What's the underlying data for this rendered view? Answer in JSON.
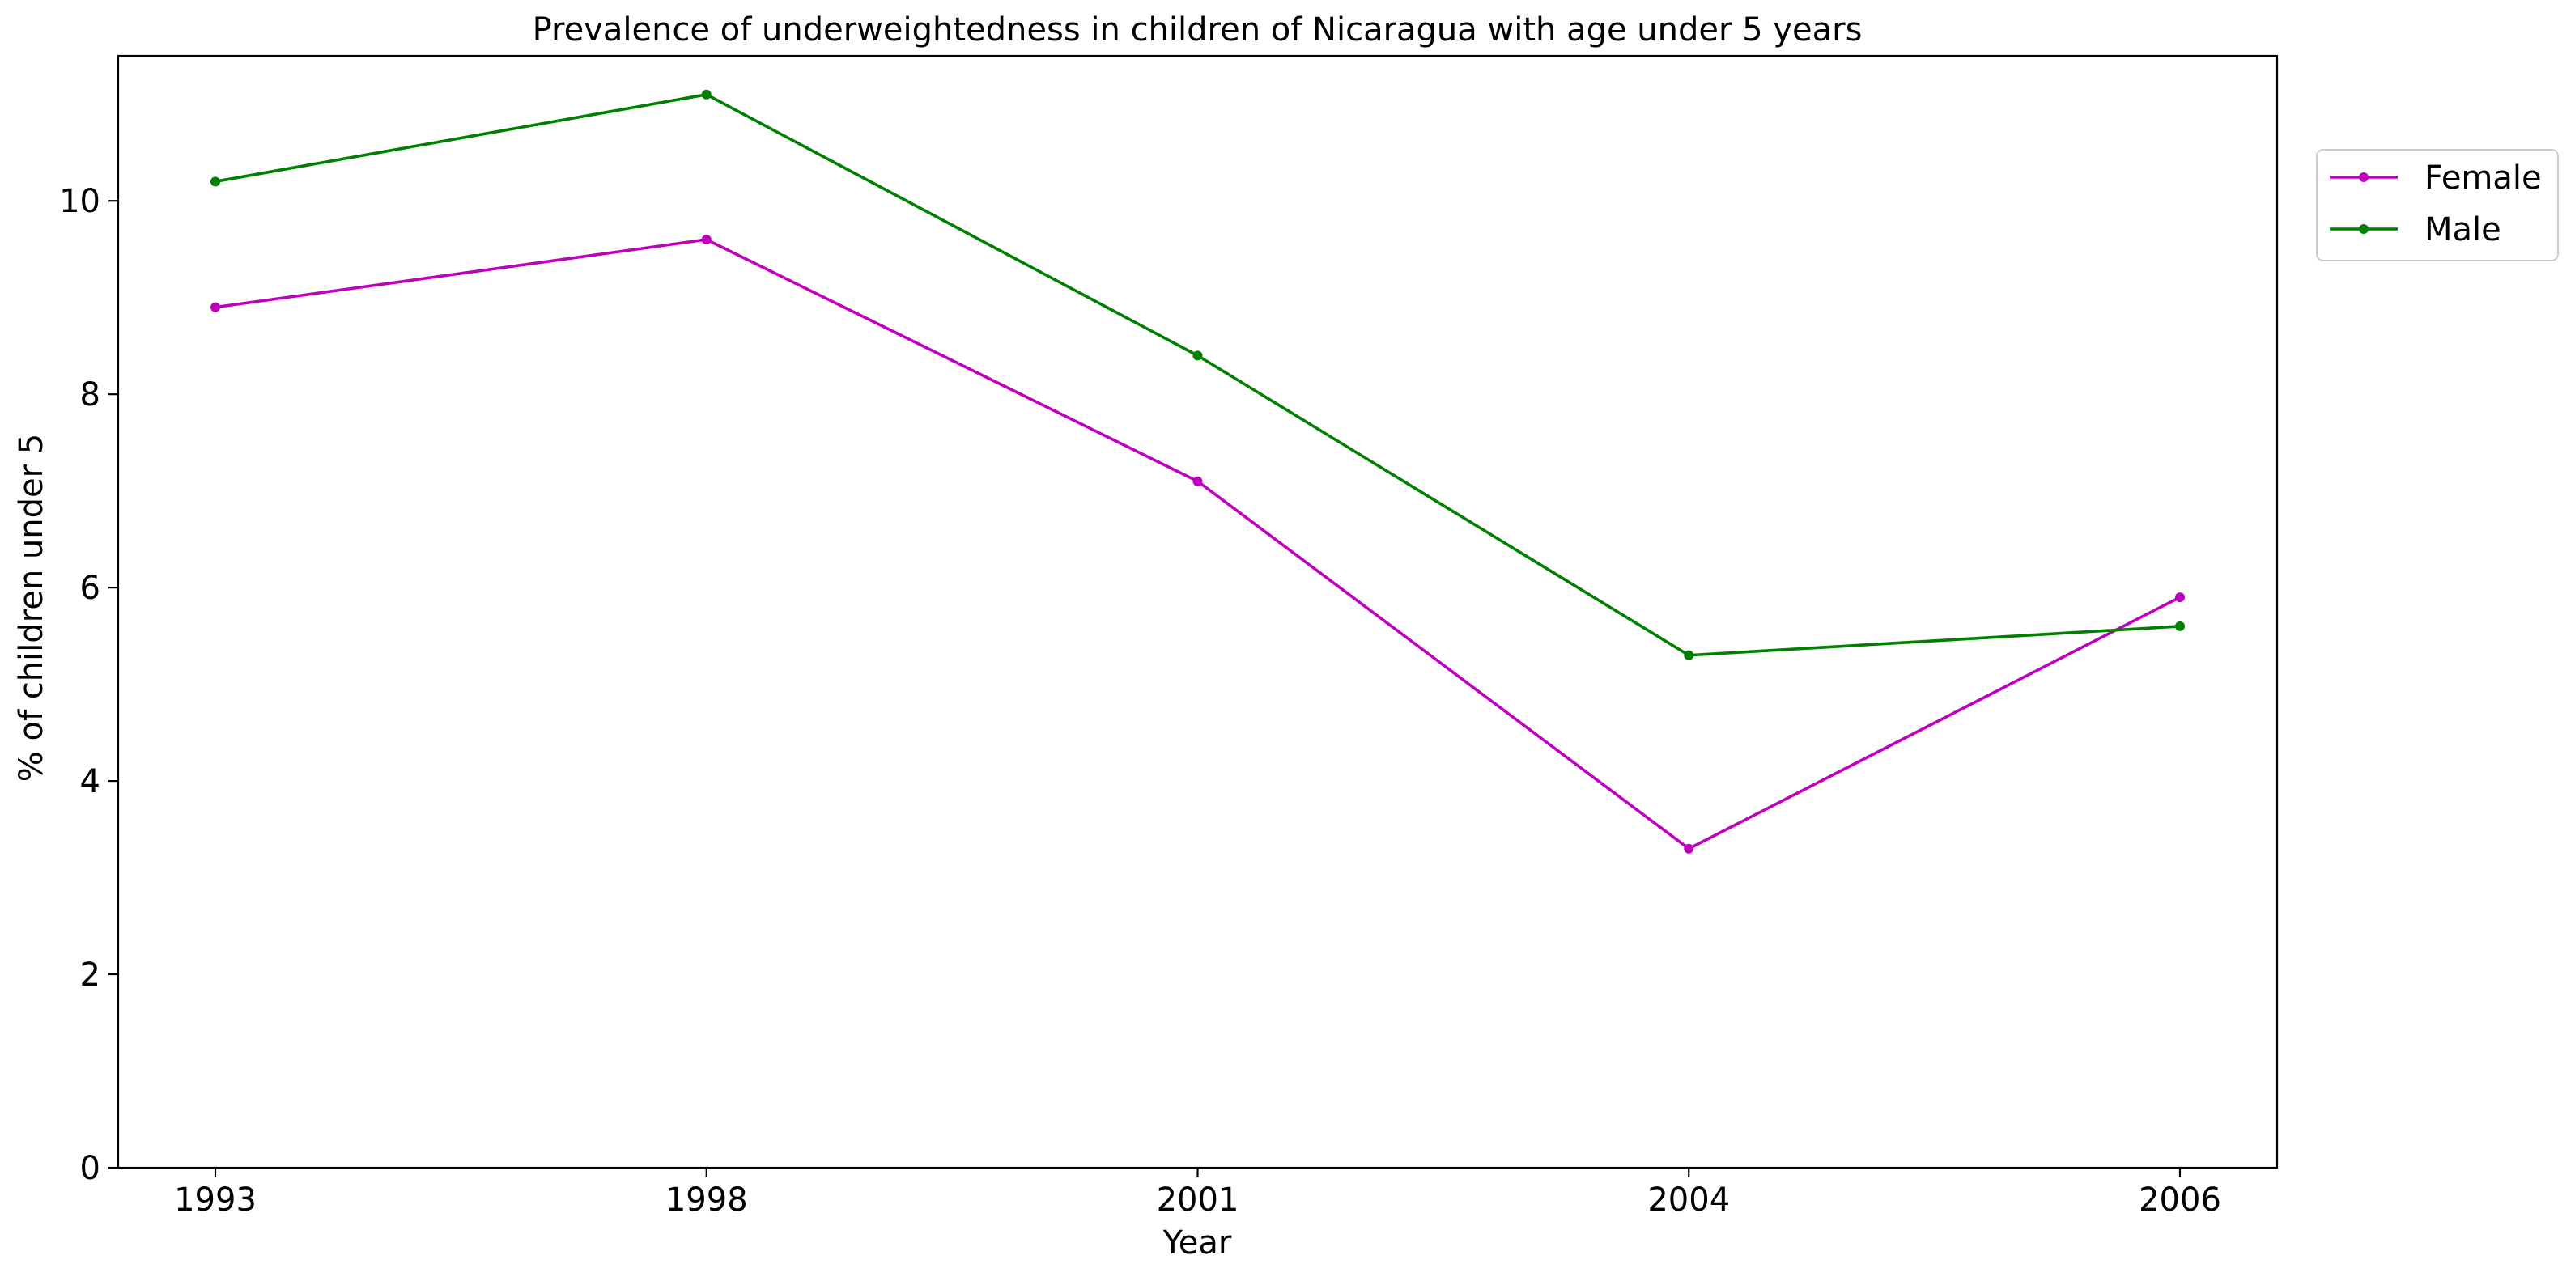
{
  "chart_data": {
    "type": "line",
    "title": "Prevalence of underweightedness in children of Nicaragua with age under 5 years",
    "xlabel": "Year",
    "ylabel": "% of children under 5",
    "categories": [
      "1993",
      "1998",
      "2001",
      "2004",
      "2006"
    ],
    "ylim": [
      0,
      11.5
    ],
    "yticks": [
      0,
      2,
      4,
      6,
      8,
      10
    ],
    "grid": false,
    "legend_position": "outside top-right",
    "series": [
      {
        "name": "Female",
        "color": "#bf00bf",
        "values": [
          8.9,
          9.6,
          7.1,
          3.3,
          5.9
        ]
      },
      {
        "name": "Male",
        "color": "#008000",
        "values": [
          10.2,
          11.1,
          8.4,
          5.3,
          5.6
        ]
      }
    ]
  }
}
